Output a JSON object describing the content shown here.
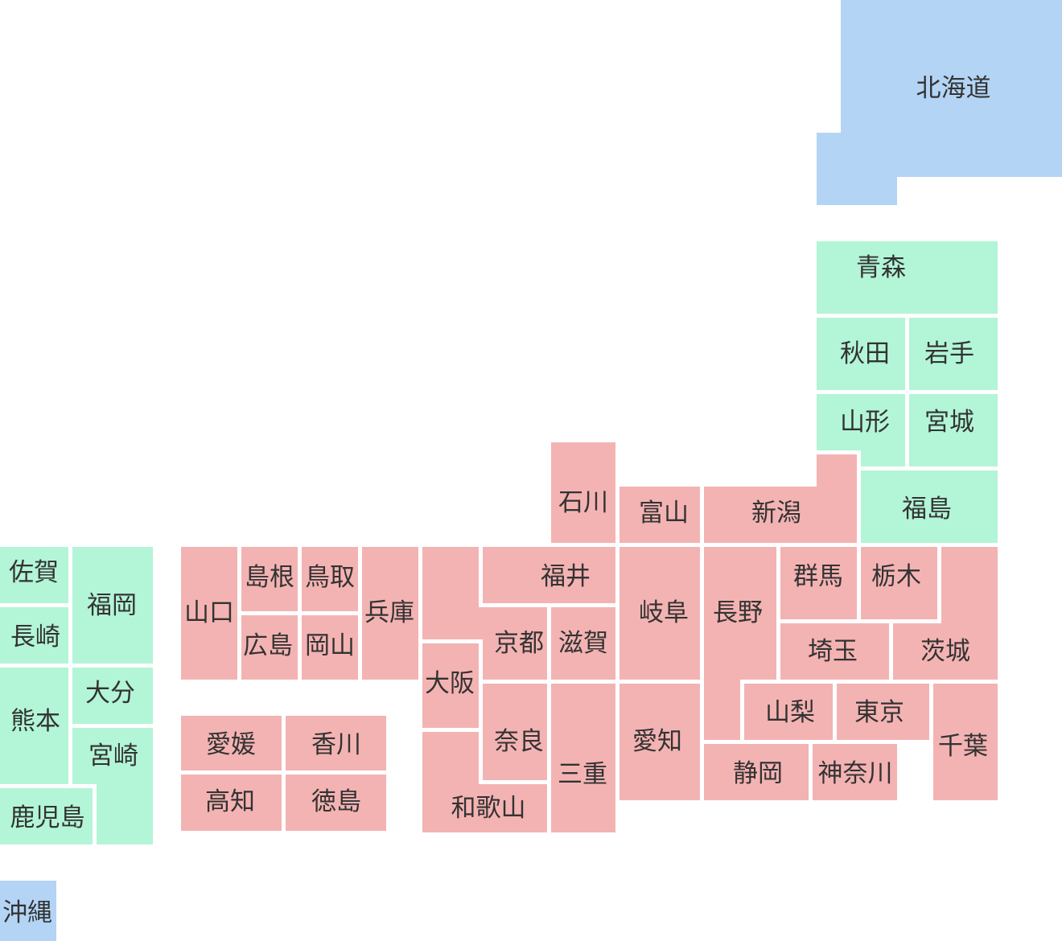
{
  "colors": {
    "region_blue": "#b3d4f5",
    "region_green": "#b3f5d7",
    "region_pink": "#f4b3b3",
    "label": "#333333"
  },
  "prefectures": [
    {
      "name": "北海道",
      "group": "blue"
    },
    {
      "name": "青森",
      "group": "green"
    },
    {
      "name": "秋田",
      "group": "green"
    },
    {
      "name": "岩手",
      "group": "green"
    },
    {
      "name": "山形",
      "group": "green"
    },
    {
      "name": "宮城",
      "group": "green"
    },
    {
      "name": "福島",
      "group": "green"
    },
    {
      "name": "新潟",
      "group": "pink"
    },
    {
      "name": "富山",
      "group": "pink"
    },
    {
      "name": "石川",
      "group": "pink"
    },
    {
      "name": "福井",
      "group": "pink"
    },
    {
      "name": "京都",
      "group": "pink"
    },
    {
      "name": "滋賀",
      "group": "pink"
    },
    {
      "name": "大阪",
      "group": "pink"
    },
    {
      "name": "奈良",
      "group": "pink"
    },
    {
      "name": "和歌山",
      "group": "pink"
    },
    {
      "name": "三重",
      "group": "pink"
    },
    {
      "name": "兵庫",
      "group": "pink"
    },
    {
      "name": "鳥取",
      "group": "pink"
    },
    {
      "name": "島根",
      "group": "pink"
    },
    {
      "name": "岡山",
      "group": "pink"
    },
    {
      "name": "広島",
      "group": "pink"
    },
    {
      "name": "山口",
      "group": "pink"
    },
    {
      "name": "岐阜",
      "group": "pink"
    },
    {
      "name": "愛知",
      "group": "pink"
    },
    {
      "name": "長野",
      "group": "pink"
    },
    {
      "name": "群馬",
      "group": "pink"
    },
    {
      "name": "栃木",
      "group": "pink"
    },
    {
      "name": "茨城",
      "group": "pink"
    },
    {
      "name": "埼玉",
      "group": "pink"
    },
    {
      "name": "山梨",
      "group": "pink"
    },
    {
      "name": "東京",
      "group": "pink"
    },
    {
      "name": "千葉",
      "group": "pink"
    },
    {
      "name": "静岡",
      "group": "pink"
    },
    {
      "name": "神奈川",
      "group": "pink"
    },
    {
      "name": "愛媛",
      "group": "pink"
    },
    {
      "name": "香川",
      "group": "pink"
    },
    {
      "name": "高知",
      "group": "pink"
    },
    {
      "name": "徳島",
      "group": "pink"
    },
    {
      "name": "佐賀",
      "group": "green"
    },
    {
      "name": "福岡",
      "group": "green"
    },
    {
      "name": "長崎",
      "group": "green"
    },
    {
      "name": "熊本",
      "group": "green"
    },
    {
      "name": "大分",
      "group": "green"
    },
    {
      "name": "宮崎",
      "group": "green"
    },
    {
      "name": "鹿児島",
      "group": "green"
    },
    {
      "name": "沖縄",
      "group": "blue"
    }
  ]
}
